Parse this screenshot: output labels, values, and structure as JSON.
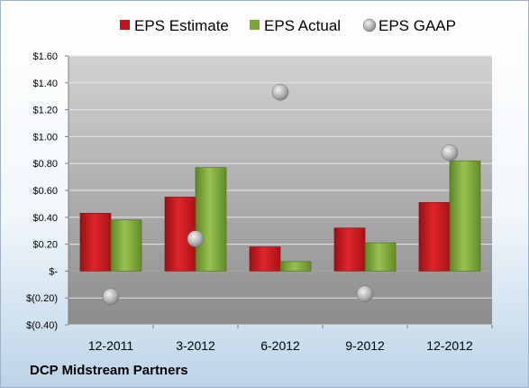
{
  "footer": {
    "company": "DCP Midstream Partners"
  },
  "chart_data": {
    "type": "bar",
    "categories": [
      "12-2011",
      "3-2012",
      "6-2012",
      "9-2012",
      "12-2012"
    ],
    "series": [
      {
        "name": "EPS Estimate",
        "kind": "bar",
        "color": "#c0151c",
        "values": [
          0.43,
          0.55,
          0.18,
          0.32,
          0.51
        ]
      },
      {
        "name": "EPS Actual",
        "kind": "bar",
        "color": "#7aa636",
        "values": [
          0.38,
          0.77,
          0.07,
          0.21,
          0.82
        ]
      },
      {
        "name": "EPS GAAP",
        "kind": "marker",
        "color": "#a6a6a6",
        "values": [
          -0.19,
          0.24,
          1.33,
          -0.17,
          0.88
        ]
      }
    ],
    "ylim": [
      -0.4,
      1.6
    ],
    "yticks": [
      -0.4,
      -0.2,
      0,
      0.2,
      0.4,
      0.6,
      0.8,
      1.0,
      1.2,
      1.4,
      1.6
    ],
    "ytick_labels": [
      "$(0.40)",
      "$(0.20)",
      "$-",
      "$0.20",
      "$0.40",
      "$0.60",
      "$0.80",
      "$1.00",
      "$1.20",
      "$1.40",
      "$1.60"
    ],
    "grid": true,
    "legend": "top",
    "plot_background": "#c8c8c8"
  }
}
